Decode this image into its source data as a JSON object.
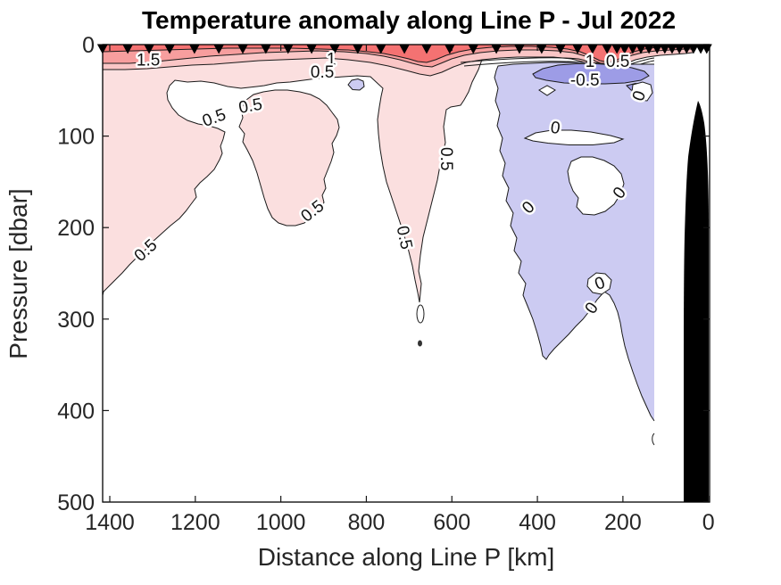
{
  "figure": {
    "title": "Temperature anomaly along Line P - Jul 2022"
  },
  "chart_data": {
    "type": "filled_contour",
    "title": "Temperature anomaly along Line P - Jul 2022",
    "xlabel": "Distance along Line P [km]",
    "ylabel": "Pressure [dbar]",
    "x_axis": {
      "ticks": [
        1400,
        1200,
        1000,
        800,
        600,
        400,
        200,
        0
      ],
      "direction": "reversed",
      "range": [
        1419,
        0
      ],
      "units": "km"
    },
    "y_axis": {
      "ticks": [
        0,
        100,
        200,
        300,
        400,
        500
      ],
      "direction": "inverted",
      "range": [
        0,
        500
      ],
      "units": "dbar"
    },
    "grid": false,
    "legend": "none",
    "contour_levels_labeled": [
      -0.5,
      0,
      0.5,
      1,
      1.5
    ],
    "colors": {
      "pos2": "#F47272",
      "pos15": "#F79E9E",
      "pos1": "#FAC6C6",
      "pos05": "#FBDFDF",
      "neg05": "#CCCBF2",
      "neg1": "#9D9CE6",
      "line": "#1a1a1a",
      "bathymetry": "#000000",
      "marker": "#000000"
    },
    "station_markers_km": [
      1417,
      1358,
      1308,
      1260,
      1202,
      1145,
      1089,
      1035,
      983,
      928,
      874,
      820,
      766,
      711,
      659,
      605,
      550,
      496,
      442,
      390,
      346,
      306,
      271,
      237,
      214,
      196,
      177,
      158,
      139,
      120,
      102,
      85,
      68,
      51,
      35,
      18,
      4
    ],
    "contour_labels": [
      {
        "text": "1.5",
        "km": 1310,
        "dbar": 17,
        "rot": 0
      },
      {
        "text": "1",
        "km": 882,
        "dbar": 16,
        "rot": 0
      },
      {
        "text": "0.5",
        "km": 903,
        "dbar": 30,
        "rot": 0
      },
      {
        "text": "0.5",
        "km": 1156,
        "dbar": 80,
        "rot": -20
      },
      {
        "text": "0.5",
        "km": 1071,
        "dbar": 67,
        "rot": -10
      },
      {
        "text": "1",
        "km": 277,
        "dbar": 18.5,
        "rot": 0
      },
      {
        "text": "0.5",
        "km": 212,
        "dbar": 18.5,
        "rot": 0
      },
      {
        "text": "-0.5",
        "km": 289,
        "dbar": 39,
        "rot": 0
      },
      {
        "text": "0",
        "km": 358,
        "dbar": 91,
        "rot": 8
      },
      {
        "text": "0",
        "km": 208,
        "dbar": 162,
        "rot": -52
      },
      {
        "text": "0",
        "km": 421,
        "dbar": 178,
        "rot": -45
      },
      {
        "text": "0",
        "km": 254,
        "dbar": 261,
        "rot": -20
      },
      {
        "text": "0",
        "km": 273,
        "dbar": 288,
        "rot": -55
      },
      {
        "text": "0",
        "km": 162,
        "dbar": 56,
        "rot": -70
      },
      {
        "text": "0.5",
        "km": 613,
        "dbar": 125,
        "rot": 90
      },
      {
        "text": "0.5",
        "km": 711,
        "dbar": 211,
        "rot": 78
      },
      {
        "text": "0.5",
        "km": 1316,
        "dbar": 225,
        "rot": -42
      },
      {
        "text": "0.5",
        "km": 926,
        "dbar": 182,
        "rot": -38
      }
    ],
    "annotations": {
      "warm_anomaly": "red shading, surface layer and upper-left of section (>0.5 degC)",
      "cold_anomaly": "blue shading, right/coastal side of section (<0 degC)",
      "bathymetry": "black seafloor silhouette near 0-60 km"
    }
  }
}
